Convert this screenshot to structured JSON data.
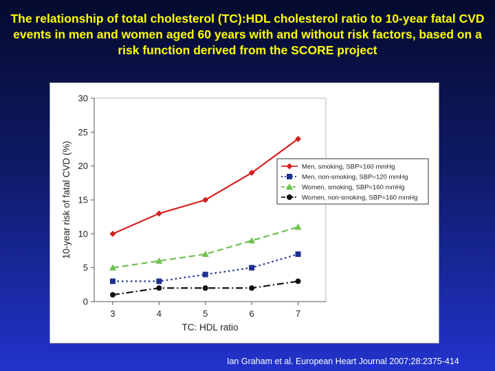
{
  "slide": {
    "title": "The relationship of total cholesterol (TC):HDL cholesterol ratio to 10-year fatal CVD events in men and women aged 60 years with and without risk factors, based on a risk function derived from the SCORE project",
    "citation": "Ian Graham et al. European Heart Journal 2007;28:2375-414"
  },
  "chart_data": {
    "type": "line",
    "xlabel": "TC: HDL ratio",
    "ylabel": "10-year risk of fatal CVD (%)",
    "x": [
      3,
      4,
      5,
      6,
      7
    ],
    "xlim": [
      2.6,
      7.6
    ],
    "ylim": [
      0,
      30
    ],
    "yticks": [
      0,
      5,
      10,
      15,
      20,
      25,
      30
    ],
    "grid": false,
    "legend_position": "right",
    "series": [
      {
        "name": "Men, smoking, SBP=160 mmHg",
        "values": [
          10,
          13,
          15,
          19,
          24
        ],
        "color": "#d42020",
        "marker": "diamond",
        "dash": "solid"
      },
      {
        "name": "Men, non-smoking, SBP=120 mmHg",
        "values": [
          3,
          3,
          4,
          5,
          7
        ],
        "color": "#1f2f8f",
        "marker": "square",
        "dash": "dotted"
      },
      {
        "name": "Women, smoking, SBP=160 mmHg",
        "values": [
          5,
          6,
          7,
          9,
          11
        ],
        "color": "#6ec04e",
        "marker": "triangle",
        "dash": "dashed"
      },
      {
        "name": "Women, non-smoking, SBP=160 mmHg",
        "values": [
          1,
          2,
          2,
          2,
          3
        ],
        "color": "#111111",
        "marker": "circle",
        "dash": "dashdot"
      }
    ]
  }
}
